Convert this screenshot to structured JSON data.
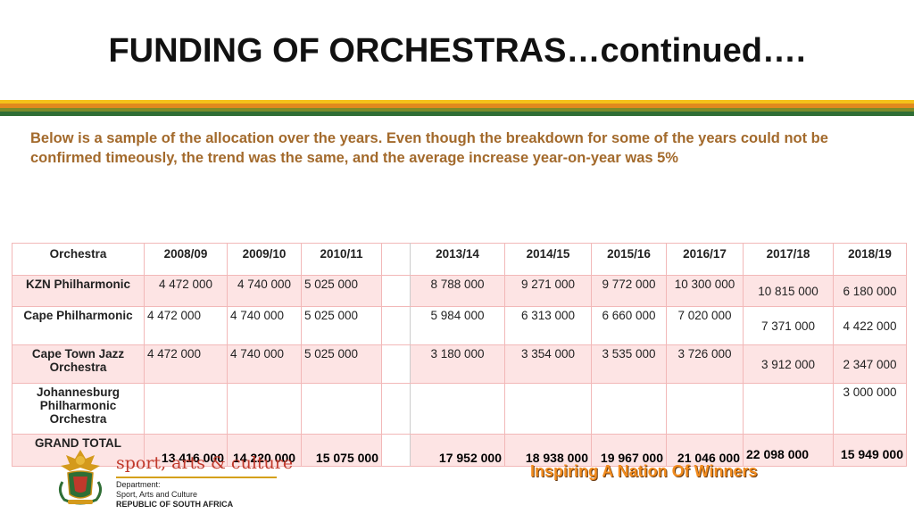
{
  "slide": {
    "title": "FUNDING OF ORCHESTRAS…continued….",
    "intro": "Below is a sample of the allocation over the years. Even though the breakdown for some of the years could not be confirmed timeously, the trend was the same, and the average increase year-on-year was 5%"
  },
  "table": {
    "header": {
      "orchestra": "Orchestra",
      "y2008": "2008/09",
      "y2009": "2009/10",
      "y2010": "2010/11",
      "y2013": "2013/14",
      "y2014": "2014/15",
      "y2015": "2015/16",
      "y2016": "2016/17",
      "y2017": "2017/18",
      "y2018": "2018/19"
    },
    "rows": [
      {
        "name": "KZN Philharmonic",
        "y2008": "4 472 000",
        "y2009": "4 740 000",
        "y2010": "5 025 000",
        "y2013": "8 788 000",
        "y2014": "9 271 000",
        "y2015": "9 772 000",
        "y2016": "10 300 000",
        "y2017": "10 815 000",
        "y2018": "6 180 000"
      },
      {
        "name": "Cape Philharmonic",
        "y2008": "4 472 000",
        "y2009": "4 740 000",
        "y2010": "5 025 000",
        "y2013": "5 984 000",
        "y2014": "6 313 000",
        "y2015": "6 660 000",
        "y2016": "7 020 000",
        "y2017": "7 371 000",
        "y2018": "4 422 000"
      },
      {
        "name": "Cape Town Jazz Orchestra",
        "y2008": "4 472 000",
        "y2009": "4 740 000",
        "y2010": "5 025 000",
        "y2013": "3 180 000",
        "y2014": "3 354 000",
        "y2015": "3 535 000",
        "y2016": "3 726 000",
        "y2017": "3 912 000",
        "y2018": "2 347 000"
      },
      {
        "name": "Johannesburg Philharmonic Orchestra",
        "y2018": "3 000 000"
      }
    ],
    "total": {
      "name": "GRAND TOTAL",
      "y2008": "13 416 000",
      "y2009": "14 220 000",
      "y2010": "15 075 000",
      "y2013": "17 952 000",
      "y2014": "18 938 000",
      "y2015": "19 967 000",
      "y2016": "21 046 000",
      "y2017": "22 098 000",
      "y2018": "15 949 000"
    }
  },
  "footer": {
    "brand": "sport, arts & culture",
    "dept_line1": "Department:",
    "dept_line2": "Sport, Arts and Culture",
    "dept_line3": "REPUBLIC OF SOUTH AFRICA",
    "slogan": "Inspiring A Nation Of Winners"
  },
  "colors": {
    "intro_text": "#a36a2c",
    "table_pink": "#fde4e4",
    "table_border": "#f2b8b8",
    "slogan": "#f28c1e"
  }
}
